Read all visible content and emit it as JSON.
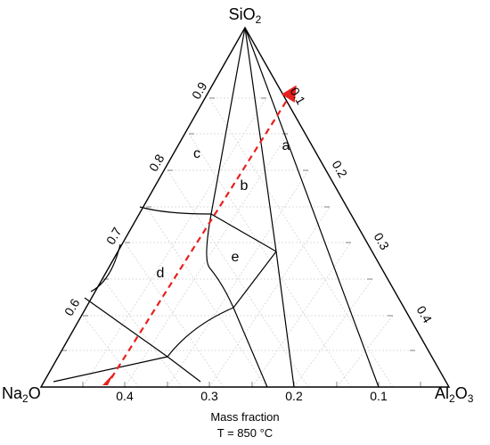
{
  "corners": {
    "top": {
      "base": "SiO",
      "sub": "2"
    },
    "left": {
      "base": "Na",
      "sub": "2",
      "tail": "O"
    },
    "right": {
      "base": "Al",
      "sub": "2",
      "tail": "O",
      "sub2": "3"
    }
  },
  "ticks": {
    "bottom": [
      "0.4",
      "0.3",
      "0.2",
      "0.1"
    ],
    "left": [
      "0.9",
      "0.8",
      "0.7",
      "0.6"
    ],
    "right": [
      "0.1",
      "0.2",
      "0.3",
      "0.4"
    ]
  },
  "regions": [
    "a",
    "b",
    "c",
    "d",
    "e"
  ],
  "caption": {
    "line1": "Mass fraction",
    "line2": "T = 850 °C"
  },
  "colors": {
    "border": "#000000",
    "grid": "#d4d4d4",
    "arrow": "#e8201c"
  }
}
